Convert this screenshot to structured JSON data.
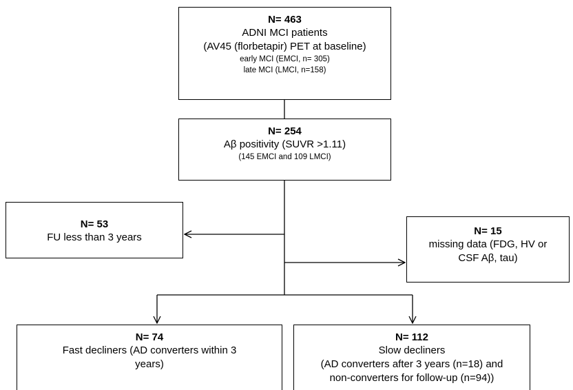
{
  "boxes": {
    "enrolled": {
      "n": "N= 463",
      "line1": "ADNI MCI patients",
      "line2": "(AV45 (florbetapir) PET at baseline)",
      "sub1": "early MCI (EMCI, n= 305)",
      "sub2": "late MCI (LMCI, n=158)"
    },
    "amyloid_positive": {
      "n": "N= 254",
      "line1": "Aβ positivity (SUVR >1.11)",
      "sub1": "(145 EMCI and 109 LMCI)"
    },
    "excluded_followup": {
      "n": "N= 53",
      "line1": "FU less than 3 years"
    },
    "excluded_missing": {
      "n": "N= 15",
      "line1": "missing data (FDG, HV or",
      "line2": "CSF Aβ, tau)"
    },
    "fast_decliners": {
      "n": "N= 74",
      "line1": "Fast decliners (AD converters within 3",
      "line2": "years)"
    },
    "slow_decliners": {
      "n": "N= 112",
      "line1": "Slow decliners",
      "line2": "(AD converters after 3 years (n=18) and",
      "line3": "non-converters for follow-up (n=94))"
    }
  }
}
